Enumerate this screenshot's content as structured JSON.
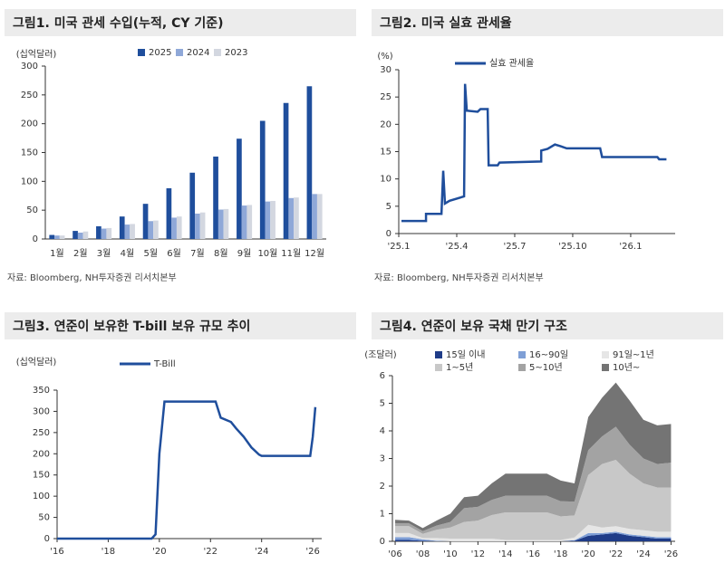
{
  "chart_data": [
    {
      "type": "bar",
      "title": "그림1. 미국 관세 수입(누적, CY 기준)",
      "ylabel": "(십억달러)",
      "source": "자료: Bloomberg, NH투자증권 리서치본부",
      "categories": [
        "1월",
        "2월",
        "3월",
        "4월",
        "5월",
        "6월",
        "7월",
        "8월",
        "9월",
        "10월",
        "11월",
        "12월"
      ],
      "series": [
        {
          "name": "2025",
          "color": "#1f4e9c",
          "values": [
            7,
            14,
            22,
            39,
            61,
            88,
            115,
            143,
            174,
            205,
            236,
            265
          ]
        },
        {
          "name": "2024",
          "color": "#8fa8d8",
          "values": [
            6,
            11,
            18,
            25,
            31,
            37,
            44,
            51,
            58,
            65,
            71,
            78
          ]
        },
        {
          "name": "2023",
          "color": "#d3d7e0",
          "values": [
            6,
            13,
            19,
            26,
            32,
            39,
            46,
            52,
            59,
            66,
            72,
            78
          ]
        }
      ],
      "ylim": [
        0,
        300
      ],
      "yticks": [
        0,
        50,
        100,
        150,
        200,
        250,
        300
      ]
    },
    {
      "type": "line",
      "title": "그림2. 미국 실효 관세율",
      "ylabel": "(%)",
      "source": "자료: Bloomberg, NH투자증권 리서치본부",
      "x": [
        0.14,
        1.41,
        1.41,
        2.21,
        2.3,
        2.39,
        2.63,
        3.38,
        3.43,
        3.52,
        4.08,
        4.23,
        4.6,
        4.65,
        5.12,
        5.21,
        7.37,
        7.37,
        7.7,
        8.08,
        8.36,
        8.69,
        10.42,
        10.52,
        13.38,
        13.47,
        13.85
      ],
      "series": [
        {
          "name": "실효 관세율",
          "color": "#1f4e9c",
          "values": [
            2.3,
            2.3,
            3.6,
            3.6,
            11.5,
            5.5,
            6.0,
            6.8,
            27.4,
            22.5,
            22.3,
            22.8,
            22.8,
            12.5,
            12.5,
            13.0,
            13.2,
            15.2,
            15.5,
            16.3,
            16.0,
            15.6,
            15.6,
            14.0,
            14.0,
            13.6,
            13.6
          ]
        }
      ],
      "xlim": [
        0,
        14.3
      ],
      "xticks": [
        {
          "value": 0,
          "label": "'25.1"
        },
        {
          "value": 3,
          "label": "'25.4"
        },
        {
          "value": 6,
          "label": "'25.7"
        },
        {
          "value": 9,
          "label": "'25.10"
        },
        {
          "value": 12,
          "label": "'26.1"
        }
      ],
      "ylim": [
        0,
        30
      ],
      "yticks": [
        0,
        5,
        10,
        15,
        20,
        25,
        30
      ]
    },
    {
      "type": "line",
      "title": "그림3. 연준이 보유한 T-bill 보유 규모 추이",
      "ylabel": "(십억달러)",
      "x": [
        2016,
        2019.7,
        2019.85,
        2020,
        2020.2,
        2022.2,
        2022.4,
        2022.8,
        2023,
        2023.3,
        2023.6,
        2023.9,
        2024,
        2025.9,
        2026,
        2026.1
      ],
      "series": [
        {
          "name": "T-Bill",
          "color": "#1f4e9c",
          "values": [
            0,
            0,
            10,
            200,
            323,
            323,
            285,
            275,
            260,
            240,
            215,
            198,
            195,
            195,
            240,
            310
          ]
        }
      ],
      "xlim": [
        2016,
        2026.35
      ],
      "xticks": [
        {
          "value": 2016,
          "label": "'16"
        },
        {
          "value": 2018,
          "label": "'18"
        },
        {
          "value": 2020,
          "label": "'20"
        },
        {
          "value": 2022,
          "label": "'22"
        },
        {
          "value": 2024,
          "label": "'24"
        },
        {
          "value": 2026,
          "label": "'26"
        }
      ],
      "ylim": [
        0,
        350
      ],
      "yticks": [
        0,
        50,
        100,
        150,
        200,
        250,
        300,
        350
      ]
    },
    {
      "type": "area",
      "title": "그림4. 연준이 보유 국채 만기 구조",
      "ylabel": "(조달러)",
      "x": [
        2006,
        2007,
        2008,
        2009,
        2010,
        2011,
        2012,
        2013,
        2014,
        2015,
        2016,
        2017,
        2018,
        2019,
        2020,
        2021,
        2022,
        2023,
        2024,
        2025,
        2026
      ],
      "series": [
        {
          "name": "15일 이내",
          "color": "#1f3c88",
          "values": [
            0.05,
            0.05,
            0.02,
            0,
            0,
            0,
            0,
            0,
            0,
            0,
            0,
            0,
            0,
            0.02,
            0.2,
            0.25,
            0.3,
            0.2,
            0.15,
            0.1,
            0.1
          ]
        },
        {
          "name": "16~90일",
          "color": "#7f9fd6",
          "values": [
            0.1,
            0.1,
            0.05,
            0.02,
            0,
            0,
            0,
            0,
            0,
            0,
            0,
            0,
            0,
            0.02,
            0.1,
            0.05,
            0.05,
            0.05,
            0.05,
            0.05,
            0.05
          ]
        },
        {
          "name": "91일~1년",
          "color": "#e6e6e6",
          "values": [
            0.15,
            0.15,
            0.05,
            0.1,
            0.1,
            0.1,
            0.1,
            0.1,
            0.05,
            0.05,
            0.05,
            0.05,
            0.05,
            0.1,
            0.3,
            0.2,
            0.2,
            0.2,
            0.2,
            0.2,
            0.2
          ]
        },
        {
          "name": "1~5년",
          "color": "#c8c8c8",
          "values": [
            0.25,
            0.25,
            0.15,
            0.3,
            0.4,
            0.6,
            0.65,
            0.85,
            1.0,
            1.0,
            1.0,
            1.0,
            0.85,
            0.8,
            1.8,
            2.3,
            2.4,
            2.0,
            1.7,
            1.6,
            1.6
          ]
        },
        {
          "name": "5~10년",
          "color": "#a3a3a3",
          "values": [
            0.1,
            0.1,
            0.1,
            0.15,
            0.2,
            0.5,
            0.5,
            0.55,
            0.6,
            0.6,
            0.6,
            0.6,
            0.55,
            0.5,
            0.9,
            1.0,
            1.2,
            1.05,
            0.9,
            0.85,
            0.9
          ]
        },
        {
          "name": "10년~",
          "color": "#747474",
          "values": [
            0.13,
            0.1,
            0.11,
            0.18,
            0.3,
            0.4,
            0.4,
            0.6,
            0.8,
            0.8,
            0.8,
            0.8,
            0.75,
            0.66,
            1.2,
            1.4,
            1.6,
            1.6,
            1.4,
            1.4,
            1.4
          ]
        }
      ],
      "xlim": [
        2005.8,
        2026.3
      ],
      "xticks": [
        {
          "value": 2006,
          "label": "'06"
        },
        {
          "value": 2008,
          "label": "'08"
        },
        {
          "value": 2010,
          "label": "'10"
        },
        {
          "value": 2012,
          "label": "'12"
        },
        {
          "value": 2014,
          "label": "'14"
        },
        {
          "value": 2016,
          "label": "'16"
        },
        {
          "value": 2018,
          "label": "'18"
        },
        {
          "value": 2020,
          "label": "'20"
        },
        {
          "value": 2022,
          "label": "'22"
        },
        {
          "value": 2024,
          "label": "'24"
        },
        {
          "value": 2026,
          "label": "'26"
        }
      ],
      "ylim": [
        0,
        6
      ],
      "yticks": [
        0,
        1,
        2,
        3,
        4,
        5,
        6
      ]
    }
  ]
}
